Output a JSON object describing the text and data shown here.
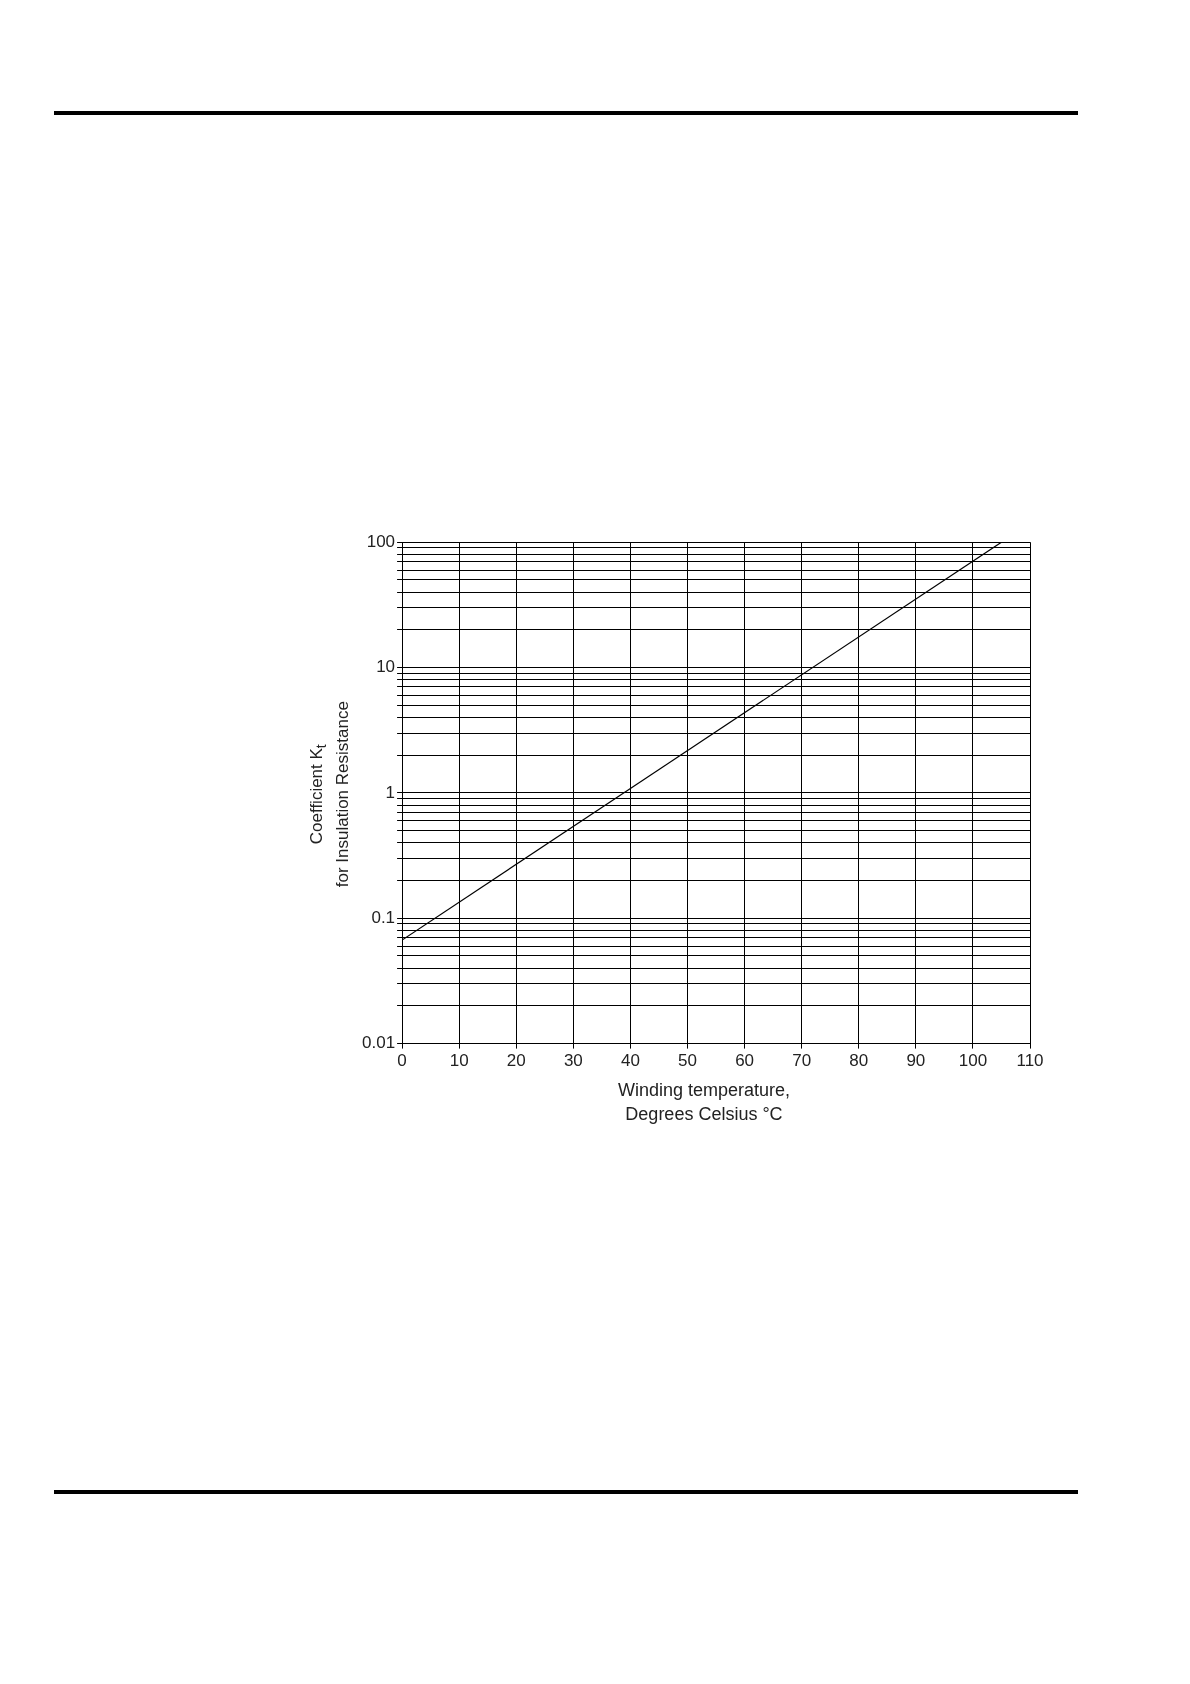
{
  "chart_data": {
    "type": "line",
    "xlabel": "Winding temperature,\nDegrees Celsius °C",
    "ylabel": "Coefficient K$_{t}$\nfor Insulation Resistance",
    "x": [
      0,
      105
    ],
    "series": [
      {
        "color": "#000000",
        "values": [
          0.067,
          100
        ]
      }
    ],
    "xlim": [
      0,
      110
    ],
    "xticks": [
      0,
      10,
      20,
      30,
      40,
      50,
      60,
      70,
      80,
      90,
      100,
      110
    ],
    "ylim": [
      0.01,
      100
    ],
    "log": "y",
    "grid": true,
    "marker": "none",
    "line_style": "solid",
    "yticks": [
      0.01,
      {
        "value": 0.02,
        "label": null
      },
      {
        "value": 0.03,
        "label": null
      },
      {
        "value": 0.04,
        "label": null
      },
      {
        "value": 0.05,
        "label": null
      },
      {
        "value": 0.06,
        "label": null
      },
      {
        "value": 0.07,
        "label": null
      },
      {
        "value": 0.08,
        "label": null
      },
      {
        "value": 0.09,
        "label": null
      },
      0.1,
      {
        "value": 0.2,
        "label": null
      },
      {
        "value": 0.3,
        "label": null
      },
      {
        "value": 0.4,
        "label": null
      },
      {
        "value": 0.5,
        "label": null
      },
      {
        "value": 0.6,
        "label": null
      },
      {
        "value": 0.7,
        "label": null
      },
      {
        "value": 0.8,
        "label": null
      },
      {
        "value": 0.9,
        "label": null
      },
      1,
      {
        "value": 2,
        "label": null
      },
      {
        "value": 3,
        "label": null
      },
      {
        "value": 4,
        "label": null
      },
      {
        "value": 5,
        "label": null
      },
      {
        "value": 6,
        "label": null
      },
      {
        "value": 7,
        "label": null
      },
      {
        "value": 8,
        "label": null
      },
      {
        "value": 9,
        "label": null
      },
      10,
      {
        "value": 20,
        "label": null
      },
      {
        "value": 30,
        "label": null
      },
      {
        "value": 40,
        "label": null
      },
      {
        "value": 50,
        "label": null
      },
      {
        "value": 60,
        "label": null
      },
      {
        "value": 70,
        "label": null
      },
      {
        "value": 80,
        "label": null
      },
      {
        "value": 90,
        "label": null
      },
      100
    ]
  }
}
